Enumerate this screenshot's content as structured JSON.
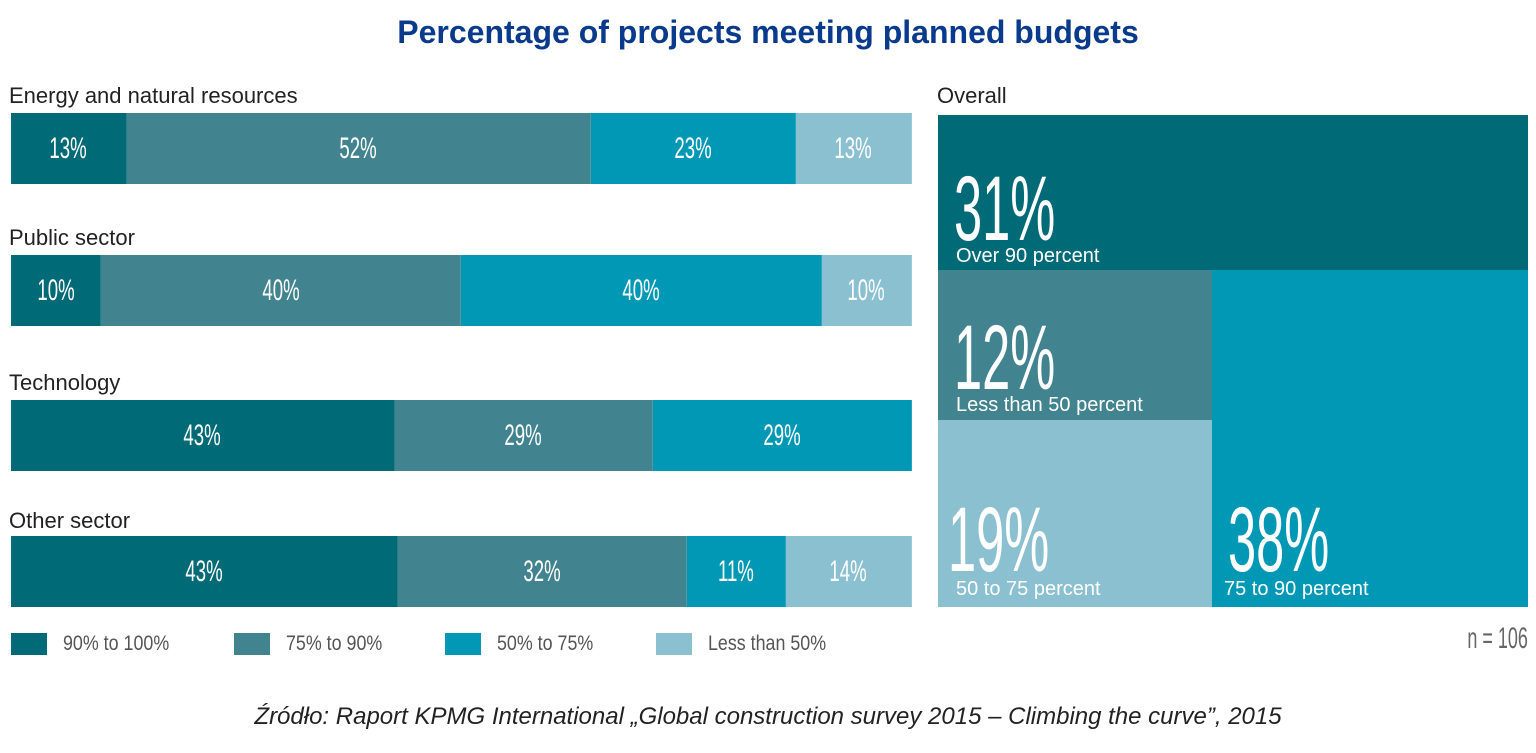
{
  "chart_data": {
    "type": "bar",
    "stacked": true,
    "orientation": "horizontal",
    "title": "Percentage of projects meeting planned budgets",
    "categories": [
      "Energy and natural resources",
      "Public sector",
      "Technology",
      "Other sector"
    ],
    "series": [
      {
        "name": "90% to 100%",
        "color": "#006a76",
        "values": [
          13,
          10,
          43,
          43
        ]
      },
      {
        "name": "75% to 90%",
        "color": "#41838f",
        "values": [
          52,
          40,
          29,
          32
        ]
      },
      {
        "name": "50% to 75%",
        "color": "#0098b4",
        "values": [
          23,
          40,
          29,
          11
        ]
      },
      {
        "name": "Less than 50%",
        "color": "#8bc0d1",
        "values": [
          13,
          10,
          0,
          14
        ]
      }
    ],
    "legend_position": "bottom-left",
    "overall": {
      "type": "treemap",
      "title": "Overall",
      "items": [
        {
          "value": "31%",
          "label": "Over 90 percent",
          "color": "#006a76"
        },
        {
          "value": "12%",
          "label": "Less than 50 percent",
          "color": "#41838f"
        },
        {
          "value": "19%",
          "label": "50 to 75 percent",
          "color": "#8bc0d1"
        },
        {
          "value": "38%",
          "label": "75 to 90 percent",
          "color": "#0098b4"
        }
      ],
      "sample_size": "n = 106"
    }
  },
  "source": "Źródło: Raport KPMG International „Global construction survey 2015 – Climbing the curve”, 2015"
}
